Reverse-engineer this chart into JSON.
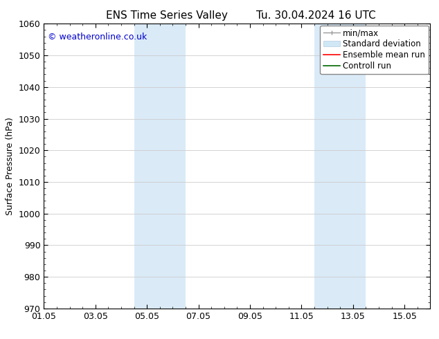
{
  "title_left": "ENS Time Series Valley",
  "title_right": "Tu. 30.04.2024 16 UTC",
  "ylabel": "Surface Pressure (hPa)",
  "ylim": [
    970,
    1060
  ],
  "yticks": [
    970,
    980,
    990,
    1000,
    1010,
    1020,
    1030,
    1040,
    1050,
    1060
  ],
  "xtick_labels": [
    "01.05",
    "03.05",
    "05.05",
    "07.05",
    "09.05",
    "11.05",
    "13.05",
    "15.05"
  ],
  "xtick_positions": [
    0,
    2,
    4,
    6,
    8,
    10,
    12,
    14
  ],
  "xlim": [
    0,
    15
  ],
  "shaded_bands": [
    {
      "x_start": 3.5,
      "x_end": 5.5
    },
    {
      "x_start": 10.5,
      "x_end": 12.5
    }
  ],
  "shaded_color": "#daeaf7",
  "copyright_text": "© weatheronline.co.uk",
  "copyright_color": "#0000cc",
  "background_color": "#ffffff",
  "grid_color": "#cccccc",
  "font_size": 9,
  "title_font_size": 11
}
